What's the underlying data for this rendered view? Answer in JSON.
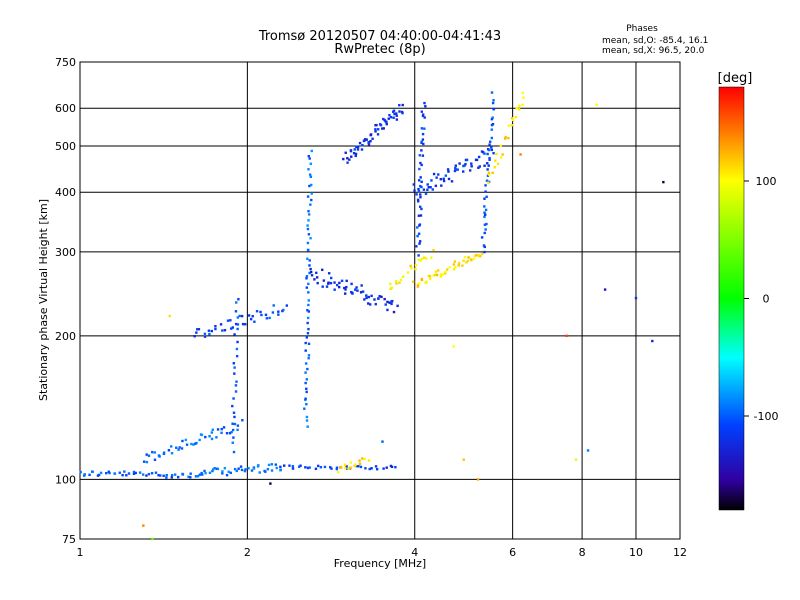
{
  "chart_data": {
    "type": "scatter",
    "title": "Tromsø 20120507 04:40:00-04:41:43",
    "subtitle": "RwPretec (8p)",
    "xlabel": "Frequency [MHz]",
    "ylabel": "Stationary phase Virtual Height [km]",
    "x_scale": "log",
    "y_scale": "log",
    "xlim": [
      1,
      12
    ],
    "ylim": [
      75,
      750
    ],
    "x_ticks": [
      1,
      2,
      4,
      6,
      8,
      10,
      12
    ],
    "x_tick_labels": [
      "1",
      "2",
      "4",
      "6",
      "8",
      "10",
      "12"
    ],
    "y_ticks": [
      75,
      100,
      200,
      300,
      400,
      500,
      600,
      750
    ],
    "y_tick_labels": [
      "75",
      "100",
      "200",
      "300",
      "400",
      "500",
      "600",
      "750"
    ],
    "grid": true,
    "phases_box": {
      "title": "Phases",
      "line1": "mean, sd,O: -85.4, 16.1",
      "line2": "mean, sd,X:  96.5, 20.0"
    },
    "colorbar": {
      "label": "[deg]",
      "range": [
        -180,
        180
      ],
      "ticks": [
        100,
        0,
        -100
      ],
      "tick_labels": [
        "100",
        "0",
        "-100"
      ]
    },
    "traces": [
      {
        "fmin": 1.0,
        "fmax": 1.65,
        "h0": 103,
        "h1": 102,
        "phase": -100,
        "n": 45,
        "spread": 0.015
      },
      {
        "fmin": 1.65,
        "fmax": 2.3,
        "h0": 103,
        "h1": 106,
        "phase": -95,
        "n": 40,
        "spread": 0.02
      },
      {
        "fmin": 1.3,
        "fmax": 1.95,
        "h0": 110,
        "h1": 130,
        "phase": -95,
        "n": 45,
        "spread": 0.025
      },
      {
        "fmin": 2.3,
        "fmax": 3.7,
        "h0": 106,
        "h1": 106,
        "phase": -110,
        "n": 35,
        "spread": 0.01
      },
      {
        "fmin": 1.6,
        "fmax": 2.35,
        "h0": 200,
        "h1": 230,
        "phase": -110,
        "n": 40,
        "spread": 0.03
      },
      {
        "fmin": 1.88,
        "fmax": 1.92,
        "h0": 115,
        "h1": 240,
        "phase": -105,
        "n": 25,
        "spread": 0.01
      },
      {
        "fmin": 2.55,
        "fmax": 2.6,
        "h0": 130,
        "h1": 490,
        "phase": -95,
        "n": 60,
        "spread": 0.012
      },
      {
        "fmin": 2.6,
        "fmax": 3.7,
        "h0": 270,
        "h1": 230,
        "phase": -120,
        "n": 60,
        "spread": 0.04
      },
      {
        "fmin": 3.0,
        "fmax": 3.8,
        "h0": 470,
        "h1": 600,
        "phase": -120,
        "n": 60,
        "spread": 0.03
      },
      {
        "fmin": 3.6,
        "fmax": 4.3,
        "h0": 250,
        "h1": 300,
        "phase": 105,
        "n": 20,
        "spread": 0.02
      },
      {
        "fmin": 4.0,
        "fmax": 5.3,
        "h0": 255,
        "h1": 300,
        "phase": 110,
        "n": 45,
        "spread": 0.02
      },
      {
        "fmin": 4.0,
        "fmax": 5.5,
        "h0": 400,
        "h1": 480,
        "phase": -115,
        "n": 55,
        "spread": 0.04
      },
      {
        "fmin": 4.05,
        "fmax": 4.15,
        "h0": 300,
        "h1": 620,
        "phase": -110,
        "n": 40,
        "spread": 0.02
      },
      {
        "fmin": 5.3,
        "fmax": 5.55,
        "h0": 300,
        "h1": 640,
        "phase": -105,
        "n": 40,
        "spread": 0.015
      },
      {
        "fmin": 5.4,
        "fmax": 6.3,
        "h0": 420,
        "h1": 640,
        "phase": 110,
        "n": 25,
        "spread": 0.03
      },
      {
        "fmin": 2.9,
        "fmax": 3.3,
        "h0": 105,
        "h1": 110,
        "phase": 110,
        "n": 15,
        "spread": 0.015
      }
    ],
    "isolated_points": [
      {
        "x": 1.45,
        "y": 220,
        "phase": 110
      },
      {
        "x": 1.35,
        "y": 75,
        "phase": 40
      },
      {
        "x": 1.3,
        "y": 80,
        "phase": 140
      },
      {
        "x": 2.2,
        "y": 98,
        "phase": -170
      },
      {
        "x": 3.5,
        "y": 120,
        "phase": -100
      },
      {
        "x": 4.9,
        "y": 110,
        "phase": 120
      },
      {
        "x": 5.2,
        "y": 100,
        "phase": 130
      },
      {
        "x": 6.2,
        "y": 480,
        "phase": 140
      },
      {
        "x": 7.8,
        "y": 110,
        "phase": 90
      },
      {
        "x": 8.2,
        "y": 115,
        "phase": -90
      },
      {
        "x": 8.5,
        "y": 610,
        "phase": 100
      },
      {
        "x": 10.7,
        "y": 195,
        "phase": -130
      },
      {
        "x": 11.2,
        "y": 420,
        "phase": -170
      },
      {
        "x": 8.8,
        "y": 250,
        "phase": -140
      },
      {
        "x": 10.0,
        "y": 240,
        "phase": -120
      },
      {
        "x": 4.7,
        "y": 190,
        "phase": 100
      },
      {
        "x": 7.5,
        "y": 200,
        "phase": 160
      }
    ]
  }
}
